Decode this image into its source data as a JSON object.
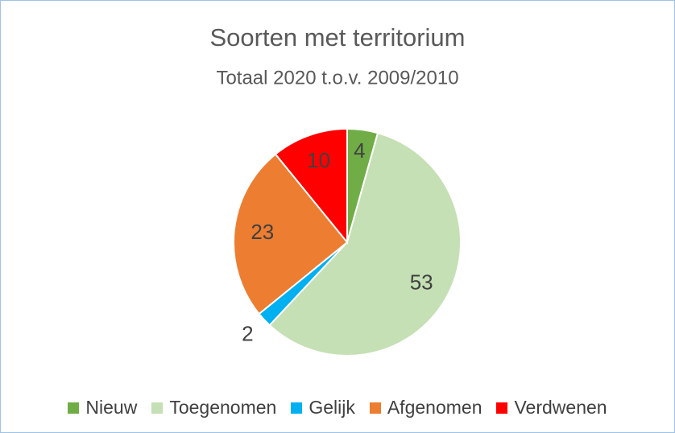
{
  "chart_data": {
    "type": "pie",
    "title": "Soorten met territorium",
    "subtitle": "Totaal 2020 t.o.v. 2009/2010",
    "categories": [
      "Nieuw",
      "Toegenomen",
      "Gelijk",
      "Afgenomen",
      "Verdwenen"
    ],
    "values": [
      4,
      53,
      2,
      23,
      10
    ],
    "colors": [
      "#70ad47",
      "#c5e0b4",
      "#00b0f0",
      "#ed7d31",
      "#ff0000"
    ],
    "legend": "bottom"
  }
}
